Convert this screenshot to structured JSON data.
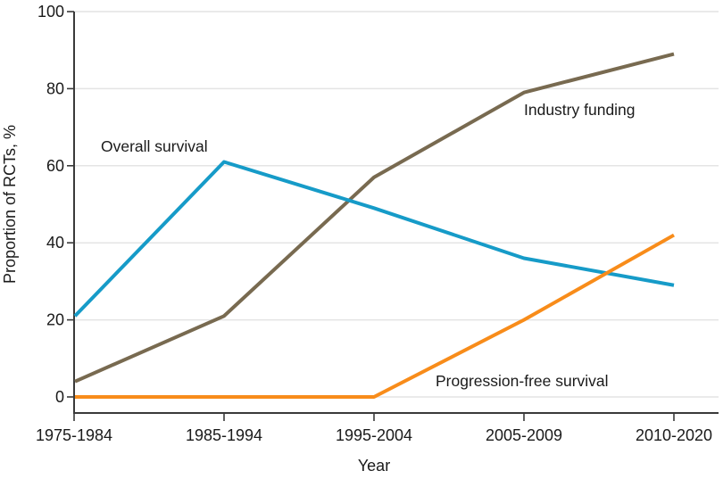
{
  "figure": {
    "background": "#ffffff",
    "text_color": "#1a1a1a",
    "axis_color": "#3a3a3a",
    "grid_color": "#e4e4e4"
  },
  "chart_data": {
    "type": "line",
    "title": "",
    "xlabel": "Year",
    "ylabel": "Proportion of RCTs, %",
    "categories": [
      "1975-1984",
      "1985-1994",
      "1995-2004",
      "2005-2009",
      "2010-2020"
    ],
    "series": [
      {
        "name": "Overall survival",
        "values": [
          21,
          61,
          49,
          36,
          29
        ],
        "color": "#169bc8"
      },
      {
        "name": "Industry funding",
        "values": [
          4,
          21,
          57,
          79,
          89
        ],
        "color": "#786a50"
      },
      {
        "name": "Progression-free survival",
        "values": [
          0,
          0,
          0,
          20,
          42
        ],
        "color": "#f88c1a"
      }
    ],
    "ylim": [
      0,
      100
    ],
    "yticks": [
      0,
      20,
      40,
      60,
      80,
      100
    ],
    "grid": "horizontal",
    "legend": "inline-labels"
  }
}
